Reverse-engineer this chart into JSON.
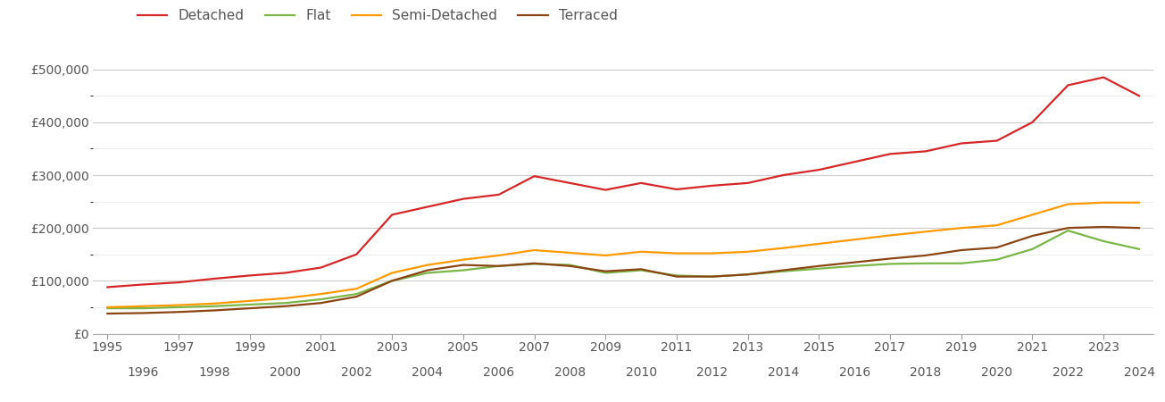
{
  "years": [
    1995,
    1996,
    1997,
    1998,
    1999,
    2000,
    2001,
    2002,
    2003,
    2004,
    2005,
    2006,
    2007,
    2008,
    2009,
    2010,
    2011,
    2012,
    2013,
    2014,
    2015,
    2016,
    2017,
    2018,
    2019,
    2020,
    2021,
    2022,
    2023,
    2024
  ],
  "detached": [
    88000,
    93000,
    97000,
    104000,
    110000,
    115000,
    125000,
    150000,
    225000,
    240000,
    255000,
    263000,
    298000,
    285000,
    272000,
    285000,
    273000,
    280000,
    285000,
    300000,
    310000,
    325000,
    340000,
    345000,
    360000,
    365000,
    400000,
    470000,
    485000,
    450000
  ],
  "flat": [
    48000,
    48000,
    50000,
    52000,
    55000,
    58000,
    65000,
    75000,
    100000,
    115000,
    120000,
    128000,
    132000,
    130000,
    115000,
    120000,
    110000,
    108000,
    112000,
    118000,
    123000,
    128000,
    132000,
    133000,
    133000,
    140000,
    160000,
    195000,
    175000,
    160000
  ],
  "semi_detached": [
    50000,
    52000,
    54000,
    57000,
    62000,
    67000,
    75000,
    85000,
    115000,
    130000,
    140000,
    148000,
    158000,
    153000,
    148000,
    155000,
    152000,
    152000,
    155000,
    162000,
    170000,
    178000,
    186000,
    193000,
    200000,
    205000,
    225000,
    245000,
    248000,
    248000
  ],
  "terraced": [
    38000,
    39000,
    41000,
    44000,
    48000,
    52000,
    58000,
    70000,
    100000,
    120000,
    130000,
    128000,
    133000,
    128000,
    118000,
    122000,
    108000,
    108000,
    112000,
    120000,
    128000,
    135000,
    142000,
    148000,
    158000,
    163000,
    185000,
    200000,
    202000,
    200000
  ],
  "colors": {
    "detached": "#d62728",
    "flat": "#7ab648",
    "semi_detached": "#ff9900",
    "terraced": "#8B4513"
  },
  "ylim": [
    0,
    540000
  ],
  "major_yticks": [
    0,
    100000,
    200000,
    300000,
    400000,
    500000
  ],
  "minor_yticks": [
    50000,
    150000,
    250000,
    350000,
    450000
  ],
  "ytick_labels": [
    "£0",
    "£100,000",
    "£200,000",
    "£300,000",
    "£400,000",
    "£500,000"
  ],
  "linewidth": 1.6,
  "background_color": "#ffffff",
  "major_grid_color": "#cccccc",
  "minor_grid_color": "#e8e8e8",
  "legend_labels": [
    "Detached",
    "Flat",
    "Semi-Detached",
    "Terraced"
  ],
  "tick_label_color": "#555555",
  "xlim_left": 1994.6,
  "xlim_right": 2024.4
}
